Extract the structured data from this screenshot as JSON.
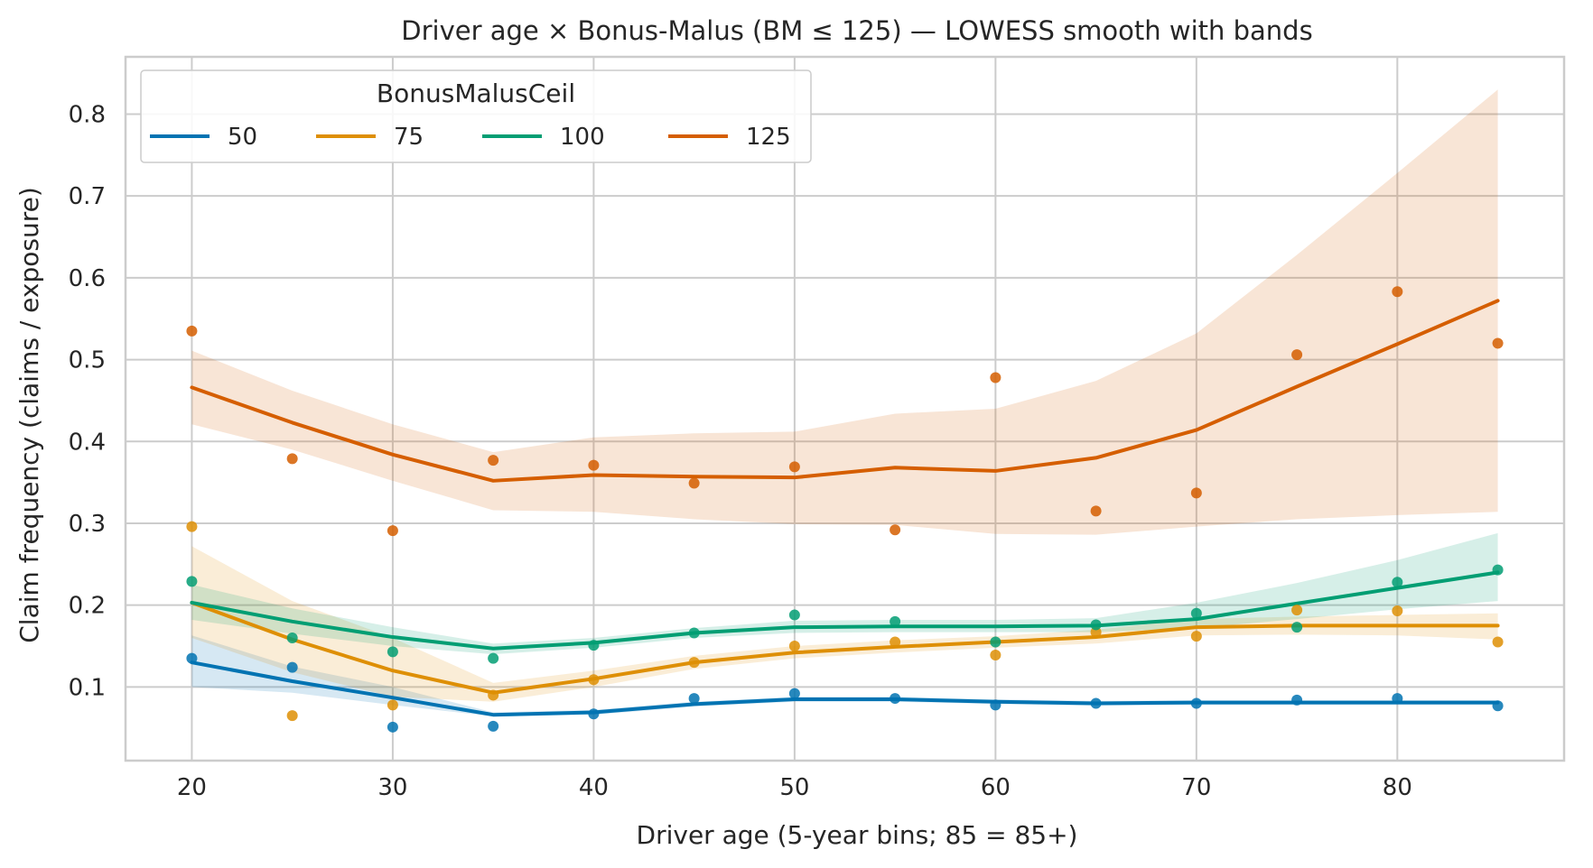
{
  "chart_data": {
    "type": "line",
    "title": "Driver age × Bonus-Malus (BM ≤ 125) — LOWESS smooth with bands",
    "xlabel": "Driver age (5-year bins; 85 = 85+)",
    "ylabel": "Claim frequency (claims / exposure)",
    "xlim": [
      16.7,
      88.3
    ],
    "ylim": [
      0.01,
      0.87
    ],
    "xticks": [
      20,
      30,
      40,
      50,
      60,
      70,
      80
    ],
    "yticks": [
      0.1,
      0.2,
      0.3,
      0.4,
      0.5,
      0.6,
      0.7,
      0.8
    ],
    "grid": true,
    "x": [
      20,
      25,
      30,
      35,
      40,
      45,
      50,
      55,
      60,
      65,
      70,
      75,
      80,
      85
    ],
    "legend": {
      "title": "BonusMalusCeil",
      "placement": "top-left"
    },
    "series": [
      {
        "name": "50",
        "color": "#0173b2",
        "points": [
          0.135,
          0.124,
          0.051,
          0.052,
          0.067,
          0.086,
          0.092,
          0.086,
          0.078,
          0.08,
          0.08,
          0.084,
          0.086,
          0.077
        ],
        "smooth": [
          0.13,
          0.107,
          0.087,
          0.066,
          0.069,
          0.079,
          0.085,
          0.085,
          0.082,
          0.08,
          0.081,
          0.081,
          0.081,
          0.081
        ],
        "band_low": [
          0.1,
          0.093,
          0.078,
          0.064,
          0.066,
          0.076,
          0.082,
          0.082,
          0.079,
          0.077,
          0.078,
          0.078,
          0.078,
          0.078
        ],
        "band_high": [
          0.163,
          0.125,
          0.1,
          0.069,
          0.072,
          0.082,
          0.088,
          0.088,
          0.085,
          0.083,
          0.084,
          0.084,
          0.084,
          0.084
        ]
      },
      {
        "name": "75",
        "color": "#de8f05",
        "points": [
          0.296,
          0.065,
          0.078,
          0.09,
          0.109,
          0.13,
          0.15,
          0.155,
          0.139,
          0.167,
          0.162,
          0.194,
          0.193,
          0.155
        ],
        "smooth": [
          0.203,
          0.158,
          0.12,
          0.093,
          0.11,
          0.13,
          0.142,
          0.149,
          0.155,
          0.161,
          0.173,
          0.175,
          0.175,
          0.175
        ],
        "band_low": [
          0.16,
          0.118,
          0.088,
          0.082,
          0.1,
          0.122,
          0.135,
          0.142,
          0.148,
          0.153,
          0.163,
          0.164,
          0.163,
          0.158
        ],
        "band_high": [
          0.272,
          0.205,
          0.16,
          0.105,
          0.12,
          0.138,
          0.15,
          0.157,
          0.162,
          0.17,
          0.183,
          0.186,
          0.188,
          0.19
        ]
      },
      {
        "name": "100",
        "color": "#029e73",
        "points": [
          0.229,
          0.16,
          0.143,
          0.135,
          0.151,
          0.166,
          0.188,
          0.18,
          0.155,
          0.176,
          0.19,
          0.173,
          0.228,
          0.243
        ],
        "smooth": [
          0.203,
          0.18,
          0.161,
          0.147,
          0.154,
          0.166,
          0.173,
          0.174,
          0.174,
          0.175,
          0.183,
          0.202,
          0.221,
          0.24
        ],
        "band_low": [
          0.182,
          0.165,
          0.15,
          0.14,
          0.148,
          0.16,
          0.166,
          0.167,
          0.167,
          0.167,
          0.172,
          0.183,
          0.195,
          0.205
        ],
        "band_high": [
          0.225,
          0.196,
          0.173,
          0.153,
          0.16,
          0.172,
          0.181,
          0.182,
          0.182,
          0.184,
          0.203,
          0.227,
          0.255,
          0.288
        ]
      },
      {
        "name": "125",
        "color": "#d55e00",
        "points": [
          0.535,
          0.379,
          0.291,
          0.377,
          0.371,
          0.349,
          0.369,
          0.292,
          0.478,
          0.315,
          0.337,
          0.506,
          0.583,
          0.52
        ],
        "smooth": [
          0.466,
          0.423,
          0.384,
          0.352,
          0.359,
          0.357,
          0.356,
          0.368,
          0.364,
          0.38,
          0.414,
          0.467,
          0.519,
          0.572
        ],
        "band_low": [
          0.421,
          0.39,
          0.352,
          0.316,
          0.314,
          0.305,
          0.299,
          0.298,
          0.287,
          0.286,
          0.296,
          0.305,
          0.31,
          0.314
        ],
        "band_high": [
          0.511,
          0.462,
          0.421,
          0.387,
          0.405,
          0.41,
          0.412,
          0.434,
          0.44,
          0.474,
          0.532,
          0.628,
          0.728,
          0.83
        ]
      }
    ]
  }
}
